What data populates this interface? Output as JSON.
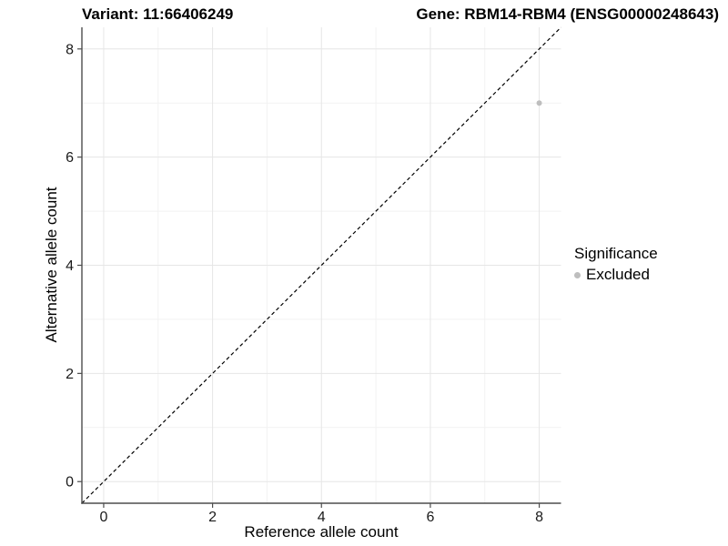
{
  "chart_data": {
    "type": "scatter",
    "title_left": "Variant: 11:66406249",
    "title_right": "Gene: RBM14-RBM4 (ENSG00000248643)",
    "xlabel": "Reference allele count",
    "ylabel": "Alternative allele count",
    "xlim": [
      -0.4,
      8.4
    ],
    "ylim": [
      -0.4,
      8.4
    ],
    "x_ticks": [
      0,
      2,
      4,
      6,
      8
    ],
    "x_minor_ticks": [
      1,
      3,
      5,
      7
    ],
    "y_ticks": [
      0,
      2,
      4,
      6,
      8
    ],
    "y_minor_ticks": [
      1,
      3,
      5,
      7
    ],
    "grid": true,
    "identity_line": {
      "type": "y=x",
      "style": "dashed",
      "color": "#000000"
    },
    "points": [
      {
        "x": 8,
        "y": 7,
        "significance": "Excluded",
        "color": "#bebebe",
        "radius": 3
      }
    ],
    "legend": {
      "title": "Significance",
      "position": "right",
      "entries": [
        {
          "label": "Excluded",
          "color": "#bebebe"
        }
      ]
    },
    "colors": {
      "axis_line": "#4d4d4d",
      "grid_major": "#e6e6e6",
      "grid_minor": "#f2f2f2",
      "tick_label": "#1a1a1a",
      "background": "#ffffff"
    }
  }
}
